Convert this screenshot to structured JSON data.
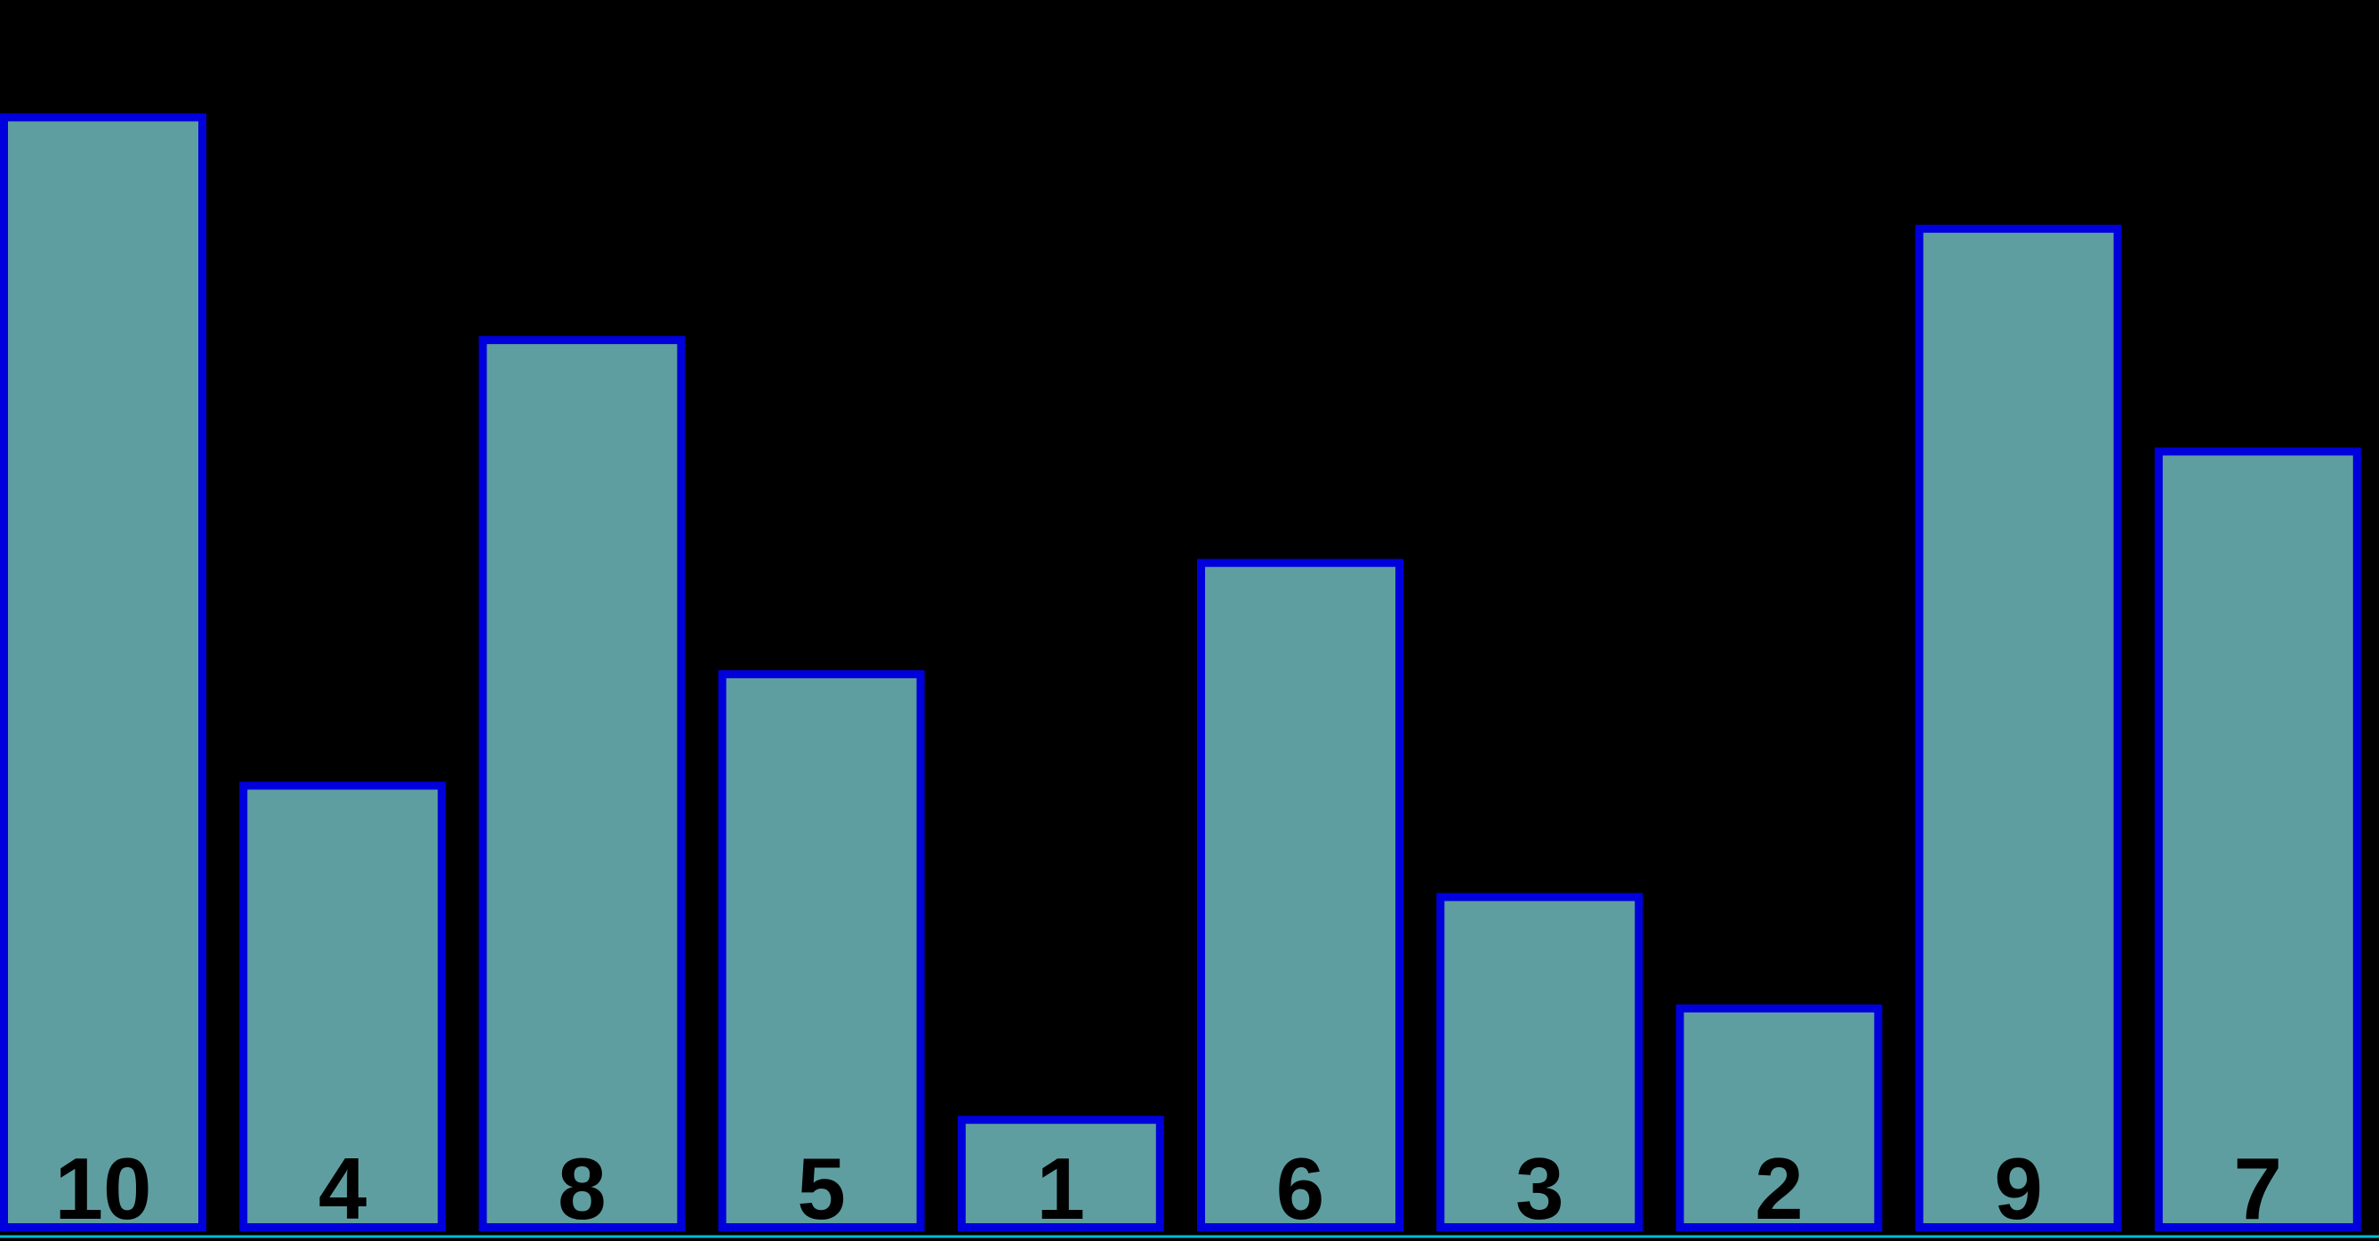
{
  "colors": {
    "background": "#000000",
    "bar_fill": "#5f9ea0",
    "bar_stroke": "#0000dd",
    "baseline": "#00bcd4",
    "label": "#000000"
  },
  "chart_data": {
    "type": "bar",
    "title": "",
    "xlabel": "",
    "ylabel": "",
    "categories": [
      "10",
      "4",
      "8",
      "5",
      "1",
      "6",
      "3",
      "2",
      "9",
      "7"
    ],
    "values": [
      10,
      4,
      8,
      5,
      1,
      6,
      3,
      2,
      9,
      7
    ],
    "data_labels": [
      "10",
      "4",
      "8",
      "5",
      "1",
      "6",
      "3",
      "2",
      "9",
      "7"
    ],
    "ylim": [
      0,
      11
    ],
    "grid": false,
    "legend": "none"
  }
}
